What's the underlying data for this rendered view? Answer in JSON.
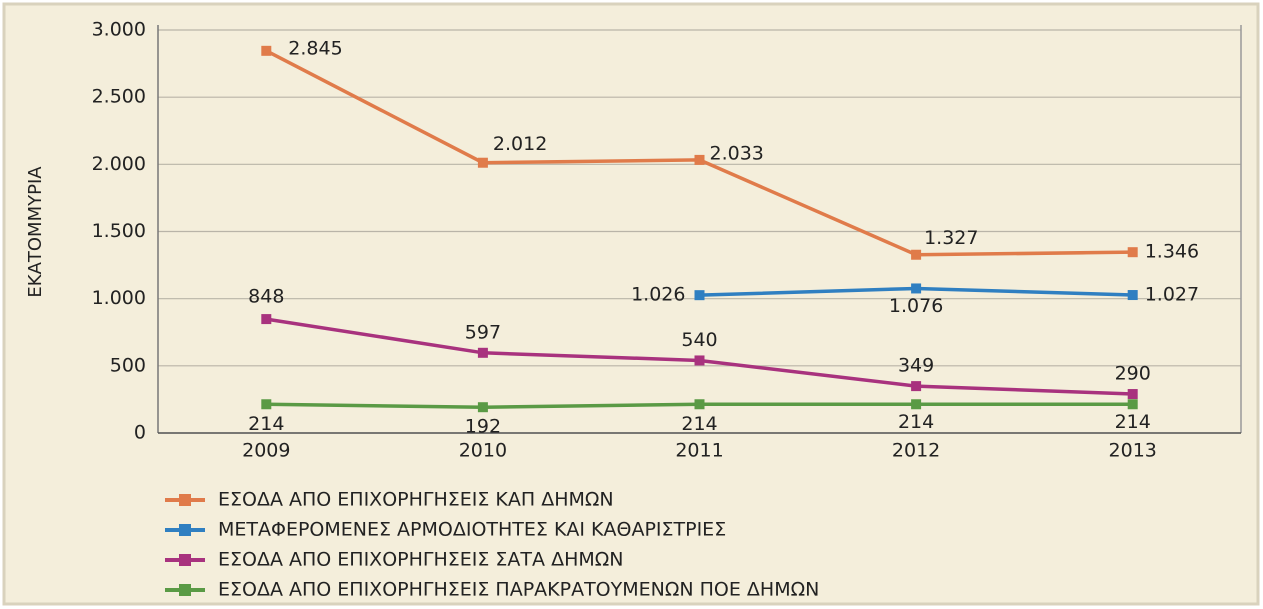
{
  "chart_data": {
    "type": "line",
    "ylabel": "ΕΚΑΤΟΜΜΥΡΙΑ",
    "categories": [
      "2009",
      "2010",
      "2011",
      "2012",
      "2013"
    ],
    "series": [
      {
        "name": "ΕΣΟΔΑ ΑΠΟ ΕΠΙΧΟΡΗΓΗΣΕΙΣ ΚΑΠ ΔΗΜΩΝ",
        "color": "#e07b4a",
        "values": [
          2845,
          2012,
          2033,
          1327,
          1346
        ],
        "value_labels": [
          "2.845",
          "2.012",
          "2.033",
          "1.327",
          "1.346"
        ]
      },
      {
        "name": "ΜΕΤΑΦΕΡΟΜΕΝΕΣ ΑΡΜΟΔΙΟΤΗΤΕΣ ΚΑΙ ΚΑΘΑΡΙΣΤΡΙΕΣ",
        "color": "#2f7fc1",
        "values": [
          null,
          null,
          1026,
          1076,
          1027
        ],
        "value_labels": [
          null,
          null,
          "1.026",
          "1.076",
          "1.027"
        ]
      },
      {
        "name": "ΕΣΟΔΑ ΑΠΟ ΕΠΙΧΟΡΗΓΗΣΕΙΣ ΣΑΤΑ ΔΗΜΩΝ",
        "color": "#a8327e",
        "values": [
          848,
          597,
          540,
          349,
          290
        ]
      },
      {
        "name": "ΕΣΟΔΑ ΑΠΟ ΕΠΙΧΟΡΗΓΗΣΕΙΣ ΠΑΡΑΚΡΑΤΟΥΜΕΝΩΝ ΠΟΕ ΔΗΜΩΝ",
        "color": "#5a9a45",
        "values": [
          214,
          192,
          214,
          214,
          214
        ]
      }
    ],
    "ylim": [
      0,
      3000
    ],
    "yticks": [
      0,
      500,
      {
        "value": 1000,
        "label": "1.000"
      },
      {
        "value": 1500,
        "label": "1.500"
      },
      {
        "value": 2000,
        "label": "2.000"
      },
      {
        "value": 2500,
        "label": "2.500"
      },
      {
        "value": 3000,
        "label": "3.000"
      }
    ],
    "grid": true
  }
}
